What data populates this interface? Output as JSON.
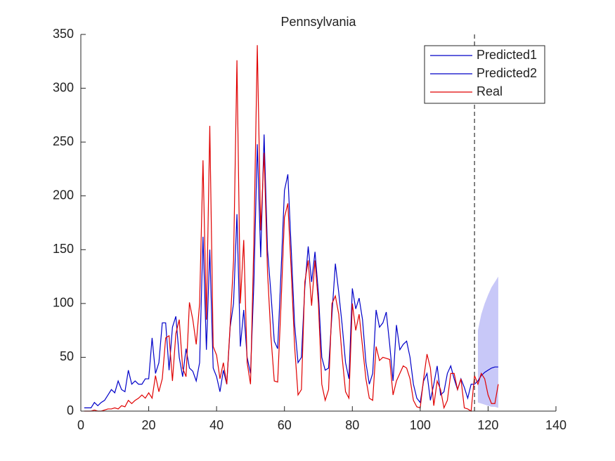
{
  "chart_data": {
    "type": "line",
    "title": "Pennsylvania",
    "xlim": [
      0,
      140
    ],
    "xticks": [
      0,
      20,
      40,
      60,
      80,
      100,
      120,
      140
    ],
    "ylim": [
      0,
      350
    ],
    "yticks": [
      0,
      50,
      100,
      150,
      200,
      250,
      300,
      350
    ],
    "legend": "upper right",
    "vline": 116,
    "band": {
      "color": "#c8c8f8",
      "x": [
        117,
        118,
        119,
        120,
        121,
        122,
        123
      ],
      "lower": [
        8,
        7,
        6,
        5,
        4,
        4,
        3
      ],
      "upper": [
        75,
        90,
        100,
        108,
        115,
        120,
        125
      ]
    },
    "series": [
      {
        "name": "Predicted1",
        "color": "#0000c8",
        "x": [
          1,
          2,
          3,
          4,
          5,
          6,
          7,
          8,
          9,
          10,
          11,
          12,
          13,
          14,
          15,
          16,
          17,
          18,
          19,
          20,
          21,
          22,
          23,
          24,
          25,
          26,
          27,
          28,
          29,
          30,
          31,
          32,
          33,
          34,
          35,
          36,
          37,
          38,
          39,
          40,
          41,
          42,
          43,
          44,
          45,
          46,
          47,
          48,
          49,
          50,
          51,
          52,
          53,
          54,
          55,
          56,
          57,
          58,
          59,
          60,
          61,
          62,
          63,
          64,
          65,
          66,
          67,
          68,
          69,
          70,
          71,
          72,
          73,
          74,
          75,
          76,
          77,
          78,
          79,
          80,
          81,
          82,
          83,
          84,
          85,
          86,
          87,
          88,
          89,
          90,
          91,
          92,
          93,
          94,
          95,
          96,
          97,
          98,
          99,
          100,
          101,
          102,
          103,
          104,
          105,
          106,
          107,
          108,
          109,
          110,
          111,
          112,
          113,
          114,
          115,
          116
        ],
        "values": [
          3,
          3,
          3,
          8,
          5,
          8,
          10,
          15,
          20,
          17,
          28,
          20,
          18,
          38,
          25,
          28,
          25,
          25,
          30,
          30,
          68,
          35,
          45,
          82,
          82,
          38,
          78,
          88,
          50,
          32,
          58,
          40,
          37,
          28,
          45,
          162,
          57,
          150,
          40,
          32,
          18,
          38,
          25,
          78,
          100,
          183,
          60,
          94,
          50,
          35,
          120,
          248,
          143,
          257,
          150,
          110,
          65,
          58,
          130,
          205,
          220,
          150,
          80,
          45,
          50,
          115,
          153,
          120,
          148,
          110,
          50,
          38,
          40,
          90,
          137,
          110,
          80,
          45,
          30,
          114,
          95,
          105,
          85,
          45,
          25,
          35,
          94,
          78,
          82,
          92,
          62,
          28,
          80,
          57,
          62,
          65,
          50,
          25,
          12,
          8,
          28,
          35,
          10,
          25,
          42,
          15,
          18,
          35,
          42,
          30,
          20,
          30,
          22,
          12,
          25,
          25
        ]
      },
      {
        "name": "Predicted2",
        "color": "#0000c8",
        "x": [
          116,
          117,
          118,
          119,
          120,
          121,
          122,
          123
        ],
        "values": [
          25,
          28,
          33,
          36,
          38,
          40,
          41,
          41
        ]
      },
      {
        "name": "Real",
        "color": "#e00000",
        "x": [
          1,
          2,
          3,
          4,
          5,
          6,
          7,
          8,
          9,
          10,
          11,
          12,
          13,
          14,
          15,
          16,
          17,
          18,
          19,
          20,
          21,
          22,
          23,
          24,
          25,
          26,
          27,
          28,
          29,
          30,
          31,
          32,
          33,
          34,
          35,
          36,
          37,
          38,
          39,
          40,
          41,
          42,
          43,
          44,
          45,
          46,
          47,
          48,
          49,
          50,
          51,
          52,
          53,
          54,
          55,
          56,
          57,
          58,
          59,
          60,
          61,
          62,
          63,
          64,
          65,
          66,
          67,
          68,
          69,
          70,
          71,
          72,
          73,
          74,
          75,
          76,
          77,
          78,
          79,
          80,
          81,
          82,
          83,
          84,
          85,
          86,
          87,
          88,
          89,
          90,
          91,
          92,
          93,
          94,
          95,
          96,
          97,
          98,
          99,
          100,
          101,
          102,
          103,
          104,
          105,
          106,
          107,
          108,
          109,
          110,
          111,
          112,
          113,
          114,
          115,
          116,
          117,
          118,
          119,
          120,
          121,
          122,
          123
        ],
        "values": [
          0,
          0,
          0,
          1,
          0,
          0,
          1,
          2,
          2,
          3,
          2,
          5,
          4,
          10,
          7,
          10,
          12,
          15,
          12,
          17,
          12,
          33,
          18,
          30,
          68,
          70,
          28,
          72,
          85,
          40,
          32,
          101,
          85,
          62,
          100,
          233,
          85,
          265,
          60,
          52,
          30,
          45,
          25,
          80,
          140,
          326,
          100,
          159,
          45,
          25,
          160,
          340,
          168,
          240,
          130,
          70,
          28,
          27,
          100,
          180,
          193,
          130,
          60,
          15,
          20,
          120,
          140,
          98,
          140,
          100,
          25,
          10,
          20,
          100,
          107,
          90,
          50,
          18,
          12,
          100,
          75,
          90,
          60,
          30,
          12,
          10,
          60,
          47,
          50,
          49,
          48,
          15,
          28,
          35,
          42,
          40,
          30,
          10,
          4,
          3,
          30,
          53,
          40,
          5,
          28,
          20,
          3,
          10,
          35,
          35,
          20,
          30,
          3,
          2,
          0,
          33,
          25,
          35,
          30,
          15,
          7,
          7,
          25
        ]
      }
    ]
  }
}
